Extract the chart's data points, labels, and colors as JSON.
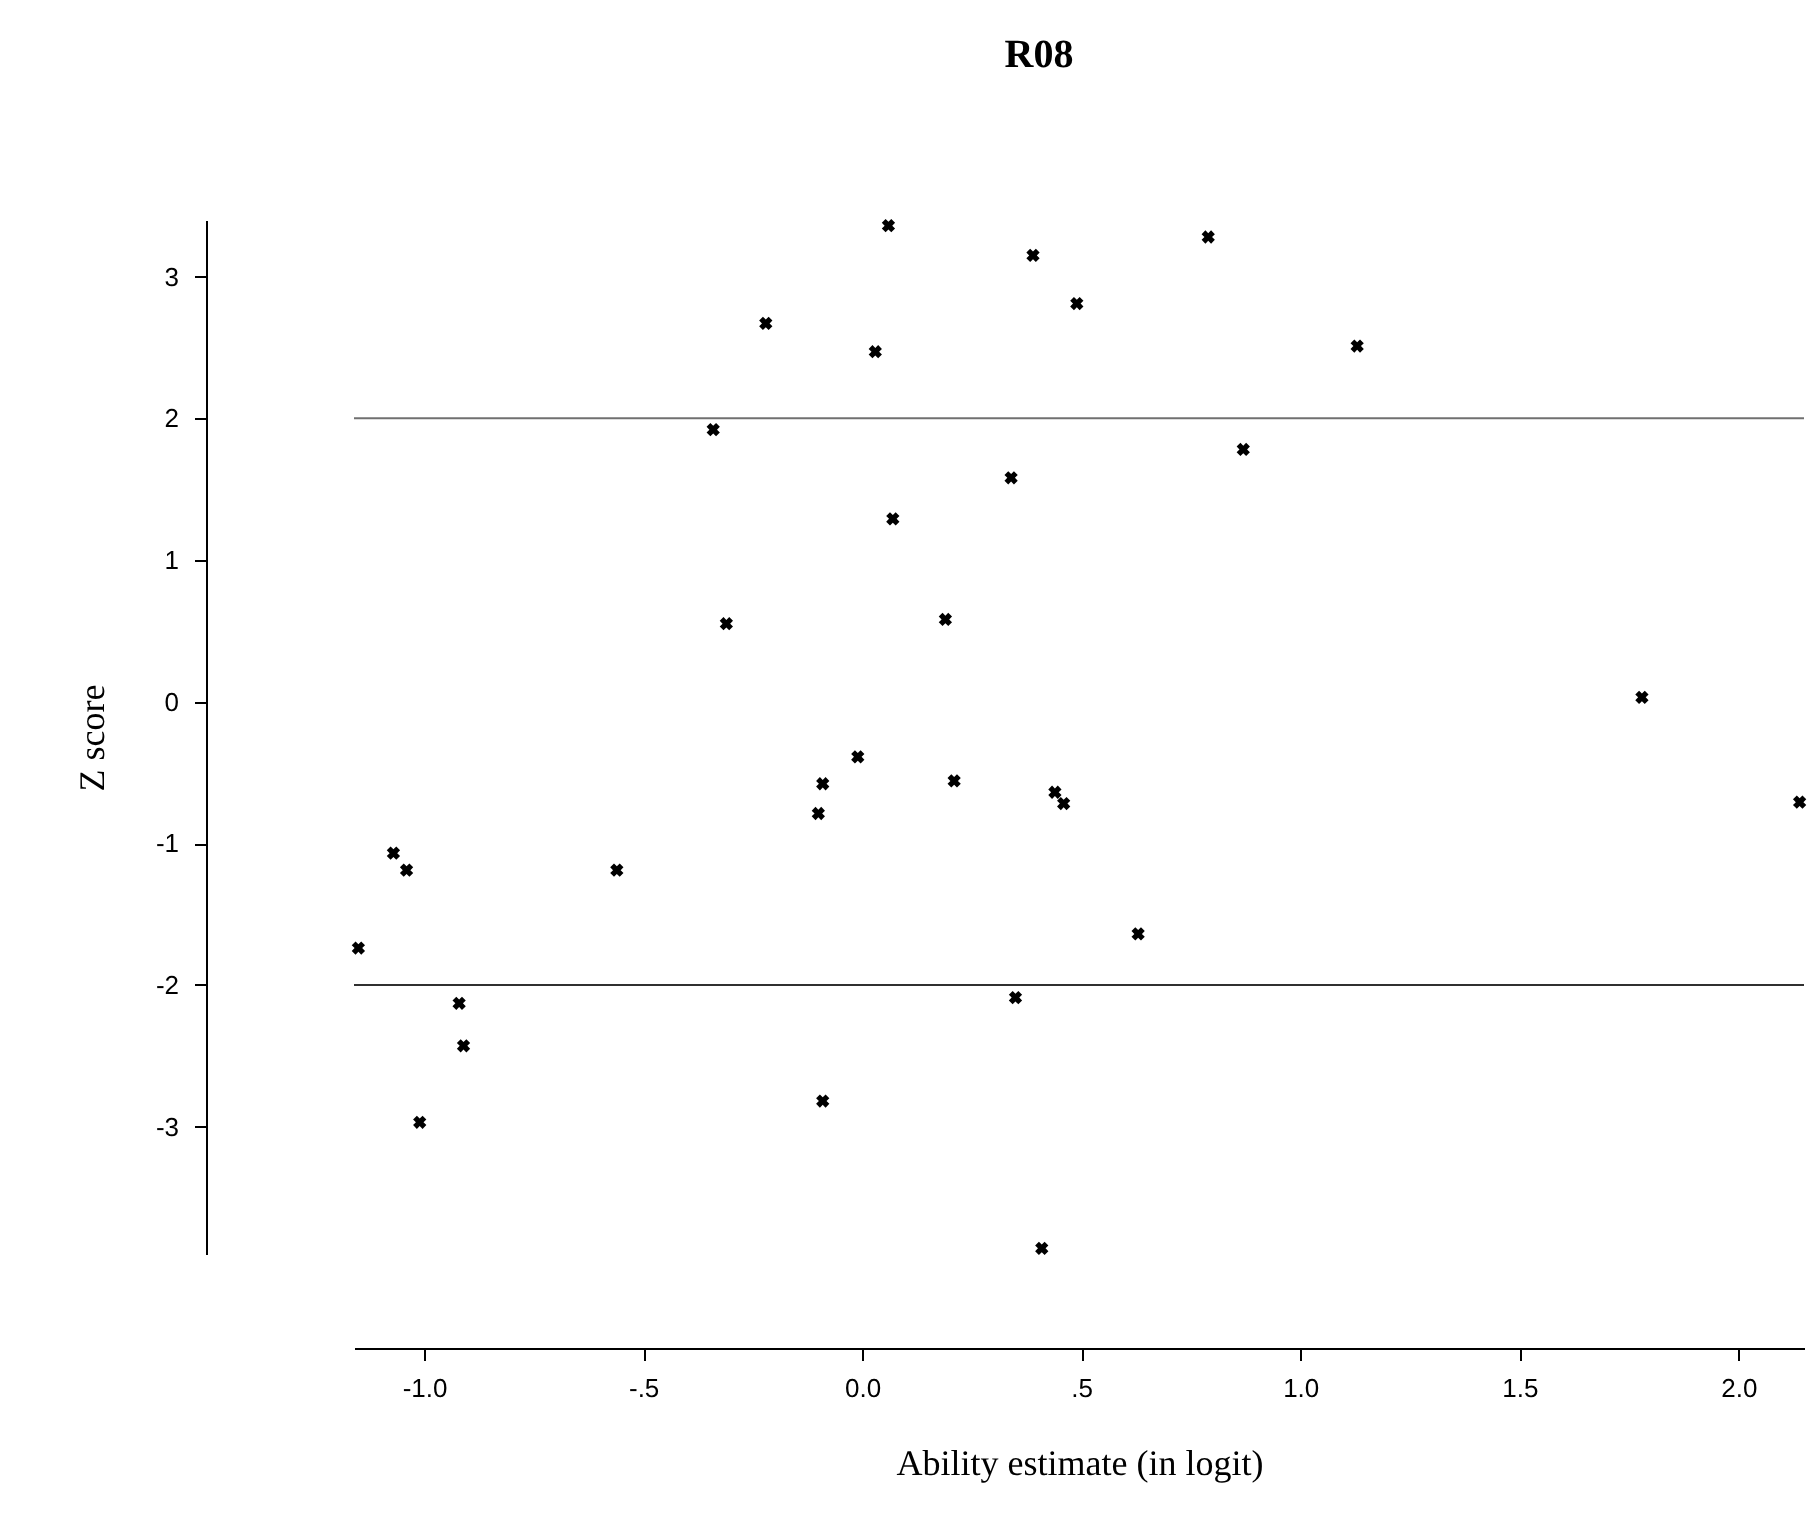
{
  "chart_data": {
    "type": "scatter",
    "title": "R08",
    "xlabel": "Ability estimate (in logit)",
    "ylabel": "Z score",
    "x": [
      0.06,
      -0.22,
      0.03,
      -0.34,
      0.34,
      0.07,
      -0.31,
      0.19,
      -0.01,
      -1.07,
      -1.04,
      -1.15,
      -0.92,
      -0.91,
      -1.01,
      -0.56,
      -0.1,
      -0.09,
      0.21,
      -0.09,
      0.35,
      0.44,
      0.46,
      2.14,
      0.63,
      0.41,
      0.39,
      0.79,
      0.49,
      1.13,
      0.87,
      1.78
    ],
    "series": [
      {
        "color": "#000000",
        "values": [
          3.36,
          2.67,
          2.47,
          1.92,
          1.58,
          1.29,
          0.55,
          0.58,
          -0.39,
          -1.07,
          -1.19,
          -1.74,
          -2.13,
          -2.43,
          -2.97,
          -1.19,
          -0.79,
          -0.58,
          -0.56,
          -2.82,
          -2.09,
          -0.64,
          -0.72,
          -0.71,
          -1.64,
          -3.86,
          3.15,
          3.28,
          2.81,
          2.51,
          1.78,
          0.03
        ]
      }
    ],
    "xlim": [
      -1.16,
      2.15
    ],
    "ylim": [
      -3.9,
      3.4
    ],
    "xticks": [
      {
        "value": -1.0,
        "label": "-1.0"
      },
      {
        "value": -0.5,
        "label": "-.5"
      },
      {
        "value": 0.0,
        "label": "0.0"
      },
      {
        "value": 0.5,
        "label": ".5"
      },
      {
        "value": 1.0,
        "label": "1.0"
      },
      {
        "value": 1.5,
        "label": "1.5"
      },
      {
        "value": 2.0,
        "label": "2.0"
      }
    ],
    "yticks": [
      -3,
      -2,
      -1,
      0,
      1,
      2,
      3
    ],
    "ref_lines": [
      {
        "axis": "y",
        "value": 2,
        "color": "#707070"
      },
      {
        "axis": "y",
        "value": -2,
        "color": "#303030"
      }
    ],
    "grid": false,
    "marker": "cross"
  }
}
